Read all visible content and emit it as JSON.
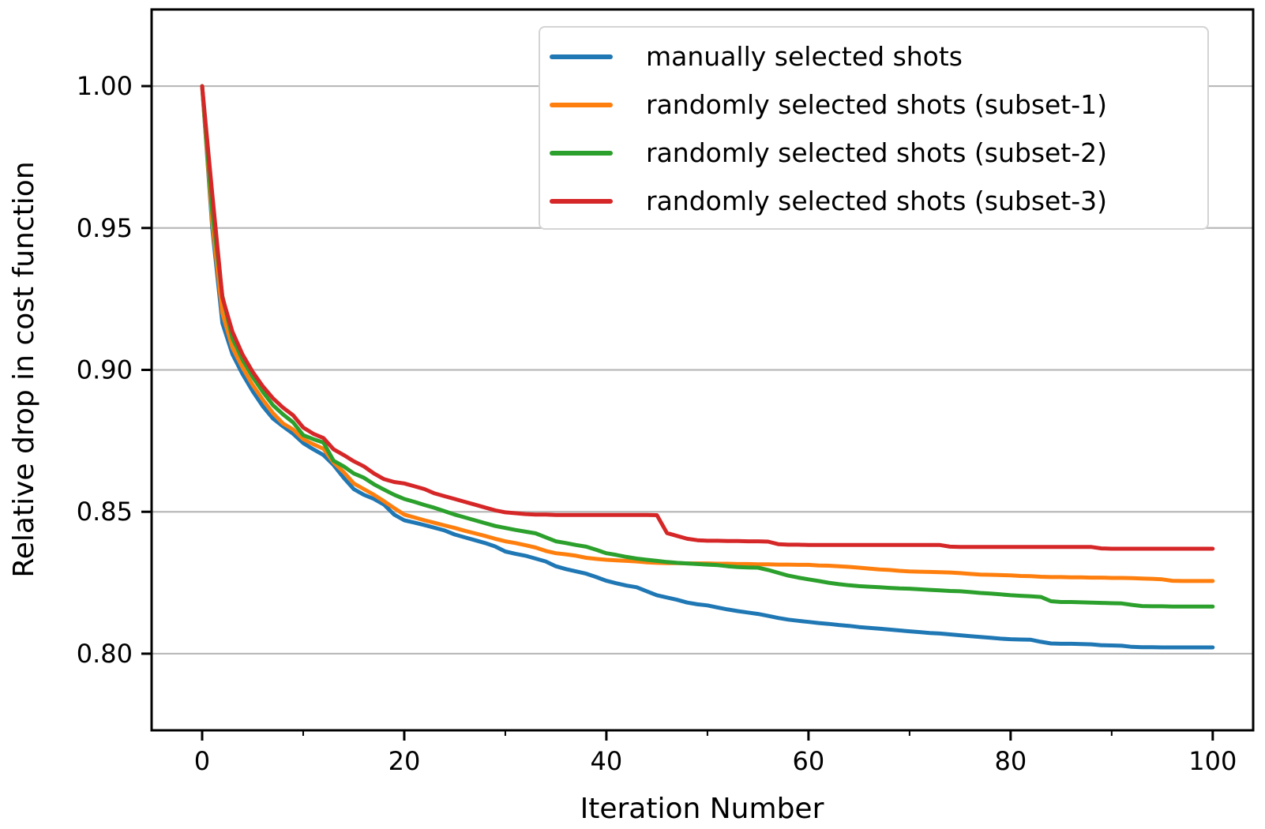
{
  "figure": {
    "background": "#ffffff",
    "axis_color": "#000000",
    "gridline_color": "#b9b9b9",
    "legend_border_color": "#d4d4d4"
  },
  "chart_data": {
    "type": "line",
    "title": "",
    "xlabel": "Iteration Number",
    "ylabel": "Relative drop in cost function",
    "xlim": [
      -5,
      104
    ],
    "ylim": [
      0.773,
      1.027
    ],
    "grid": "horizontal-only",
    "legend_position": "upper right",
    "x_ticks": {
      "major": [
        0,
        20,
        40,
        60,
        80,
        100
      ],
      "minor": [
        10,
        30,
        50,
        70,
        90
      ],
      "labels": [
        "0",
        "20",
        "40",
        "60",
        "80",
        "100"
      ]
    },
    "y_ticks": {
      "major": [
        0.8,
        0.85,
        0.9,
        0.95,
        1.0
      ],
      "labels": [
        "0.80",
        "0.85",
        "0.90",
        "0.95",
        "1.00"
      ]
    },
    "x": [
      0,
      1,
      2,
      3,
      4,
      5,
      6,
      7,
      8,
      9,
      10,
      11,
      12,
      13,
      14,
      15,
      16,
      17,
      18,
      19,
      20,
      21,
      22,
      23,
      24,
      25,
      26,
      27,
      28,
      29,
      30,
      31,
      32,
      33,
      34,
      35,
      36,
      37,
      38,
      39,
      40,
      41,
      42,
      43,
      44,
      45,
      46,
      47,
      48,
      49,
      50,
      51,
      52,
      53,
      54,
      55,
      56,
      57,
      58,
      59,
      60,
      61,
      62,
      63,
      64,
      65,
      66,
      67,
      68,
      69,
      70,
      71,
      72,
      73,
      74,
      75,
      76,
      77,
      78,
      79,
      80,
      81,
      82,
      83,
      84,
      85,
      86,
      87,
      88,
      89,
      90,
      91,
      92,
      93,
      94,
      95,
      96,
      97,
      98,
      99,
      100
    ],
    "series": [
      {
        "name": "manually selected shots",
        "color": "#1f77b4",
        "values": [
          1.0,
          0.95,
          0.9165,
          0.9055,
          0.8985,
          0.8925,
          0.8872,
          0.8829,
          0.8801,
          0.8775,
          0.8742,
          0.872,
          0.87,
          0.8665,
          0.862,
          0.858,
          0.856,
          0.8545,
          0.8525,
          0.849,
          0.847,
          0.8462,
          0.8453,
          0.8444,
          0.8434,
          0.842,
          0.841,
          0.84,
          0.839,
          0.8378,
          0.836,
          0.8352,
          0.8345,
          0.8335,
          0.8325,
          0.8308,
          0.8298,
          0.829,
          0.8282,
          0.827,
          0.8257,
          0.8248,
          0.824,
          0.8234,
          0.822,
          0.8206,
          0.8198,
          0.819,
          0.818,
          0.8174,
          0.817,
          0.8163,
          0.8156,
          0.815,
          0.8145,
          0.814,
          0.8133,
          0.8126,
          0.812,
          0.8116,
          0.8112,
          0.8108,
          0.8105,
          0.8101,
          0.8098,
          0.8094,
          0.8091,
          0.8088,
          0.8085,
          0.8082,
          0.8079,
          0.8076,
          0.8073,
          0.8071,
          0.8068,
          0.8065,
          0.8062,
          0.8059,
          0.8056,
          0.8053,
          0.8051,
          0.805,
          0.8049,
          0.8042,
          0.8036,
          0.8035,
          0.8035,
          0.8034,
          0.8033,
          0.803,
          0.8029,
          0.8028,
          0.8024,
          0.8023,
          0.8023,
          0.8022,
          0.8022,
          0.8022,
          0.8022,
          0.8022,
          0.8022
        ]
      },
      {
        "name": "randomly selected shots (subset-1)",
        "color": "#ff7f0e",
        "values": [
          1.0,
          0.952,
          0.92,
          0.9078,
          0.9008,
          0.8947,
          0.8895,
          0.8848,
          0.8811,
          0.879,
          0.8756,
          0.8738,
          0.8722,
          0.8674,
          0.864,
          0.86,
          0.858,
          0.856,
          0.8537,
          0.8513,
          0.849,
          0.848,
          0.847,
          0.8461,
          0.8452,
          0.8443,
          0.8433,
          0.8424,
          0.8415,
          0.8405,
          0.8396,
          0.839,
          0.8382,
          0.8374,
          0.8362,
          0.8354,
          0.835,
          0.8345,
          0.8338,
          0.8334,
          0.8331,
          0.8329,
          0.8327,
          0.8325,
          0.8322,
          0.832,
          0.8319,
          0.8319,
          0.8318,
          0.8318,
          0.8318,
          0.8317,
          0.8317,
          0.8316,
          0.8316,
          0.8315,
          0.8315,
          0.8314,
          0.8314,
          0.8313,
          0.8313,
          0.8311,
          0.831,
          0.8308,
          0.8306,
          0.8303,
          0.83,
          0.8297,
          0.8295,
          0.8292,
          0.829,
          0.8289,
          0.8288,
          0.8287,
          0.8286,
          0.8284,
          0.8281,
          0.8279,
          0.8278,
          0.8277,
          0.8276,
          0.8274,
          0.8273,
          0.8271,
          0.827,
          0.827,
          0.8269,
          0.8269,
          0.8268,
          0.8268,
          0.8267,
          0.8267,
          0.8266,
          0.8265,
          0.8264,
          0.8262,
          0.8257,
          0.8256,
          0.8256,
          0.8256,
          0.8256
        ]
      },
      {
        "name": "randomly selected shots (subset-2)",
        "color": "#2ca02c",
        "values": [
          1.0,
          0.956,
          0.926,
          0.9111,
          0.9036,
          0.8975,
          0.8923,
          0.8876,
          0.8843,
          0.8815,
          0.877,
          0.8756,
          0.8744,
          0.868,
          0.866,
          0.8635,
          0.862,
          0.8597,
          0.8578,
          0.856,
          0.8545,
          0.8535,
          0.8524,
          0.8514,
          0.8502,
          0.849,
          0.848,
          0.847,
          0.846,
          0.845,
          0.8443,
          0.8436,
          0.843,
          0.8424,
          0.841,
          0.8396,
          0.839,
          0.8383,
          0.8377,
          0.8366,
          0.8354,
          0.8348,
          0.8341,
          0.8335,
          0.8331,
          0.8327,
          0.8323,
          0.832,
          0.8318,
          0.8316,
          0.8314,
          0.8312,
          0.8308,
          0.8305,
          0.8304,
          0.8303,
          0.8295,
          0.8285,
          0.8275,
          0.8268,
          0.8262,
          0.8256,
          0.825,
          0.8245,
          0.8241,
          0.8238,
          0.8236,
          0.8234,
          0.8232,
          0.823,
          0.8229,
          0.8227,
          0.8225,
          0.8223,
          0.8221,
          0.822,
          0.8217,
          0.8214,
          0.8212,
          0.8209,
          0.8206,
          0.8204,
          0.8202,
          0.82,
          0.8185,
          0.8182,
          0.8182,
          0.8181,
          0.818,
          0.8179,
          0.8178,
          0.8177,
          0.8172,
          0.8168,
          0.8167,
          0.8167,
          0.8166,
          0.8166,
          0.8166,
          0.8166,
          0.8166
        ]
      },
      {
        "name": "randomly selected shots (subset-3)",
        "color": "#d62728",
        "values": [
          1.0,
          0.962,
          0.9256,
          0.9134,
          0.9054,
          0.8993,
          0.8942,
          0.89,
          0.8867,
          0.884,
          0.8797,
          0.8775,
          0.876,
          0.872,
          0.87,
          0.8678,
          0.866,
          0.8635,
          0.8615,
          0.8605,
          0.86,
          0.859,
          0.858,
          0.8565,
          0.8555,
          0.8545,
          0.8535,
          0.8525,
          0.8515,
          0.8505,
          0.8498,
          0.8495,
          0.8492,
          0.849,
          0.849,
          0.8489,
          0.8489,
          0.8489,
          0.8489,
          0.8489,
          0.8489,
          0.8489,
          0.8489,
          0.8489,
          0.8489,
          0.8488,
          0.8425,
          0.8415,
          0.8405,
          0.84,
          0.8398,
          0.8398,
          0.8397,
          0.8397,
          0.8396,
          0.8396,
          0.8395,
          0.8386,
          0.8384,
          0.8384,
          0.8383,
          0.8383,
          0.8383,
          0.8383,
          0.8383,
          0.8383,
          0.8383,
          0.8383,
          0.8383,
          0.8383,
          0.8383,
          0.8383,
          0.8383,
          0.8383,
          0.8377,
          0.8376,
          0.8376,
          0.8376,
          0.8376,
          0.8376,
          0.8376,
          0.8376,
          0.8376,
          0.8376,
          0.8376,
          0.8376,
          0.8376,
          0.8376,
          0.8376,
          0.8371,
          0.837,
          0.837,
          0.837,
          0.837,
          0.837,
          0.837,
          0.837,
          0.837,
          0.837,
          0.837,
          0.837
        ]
      }
    ]
  }
}
